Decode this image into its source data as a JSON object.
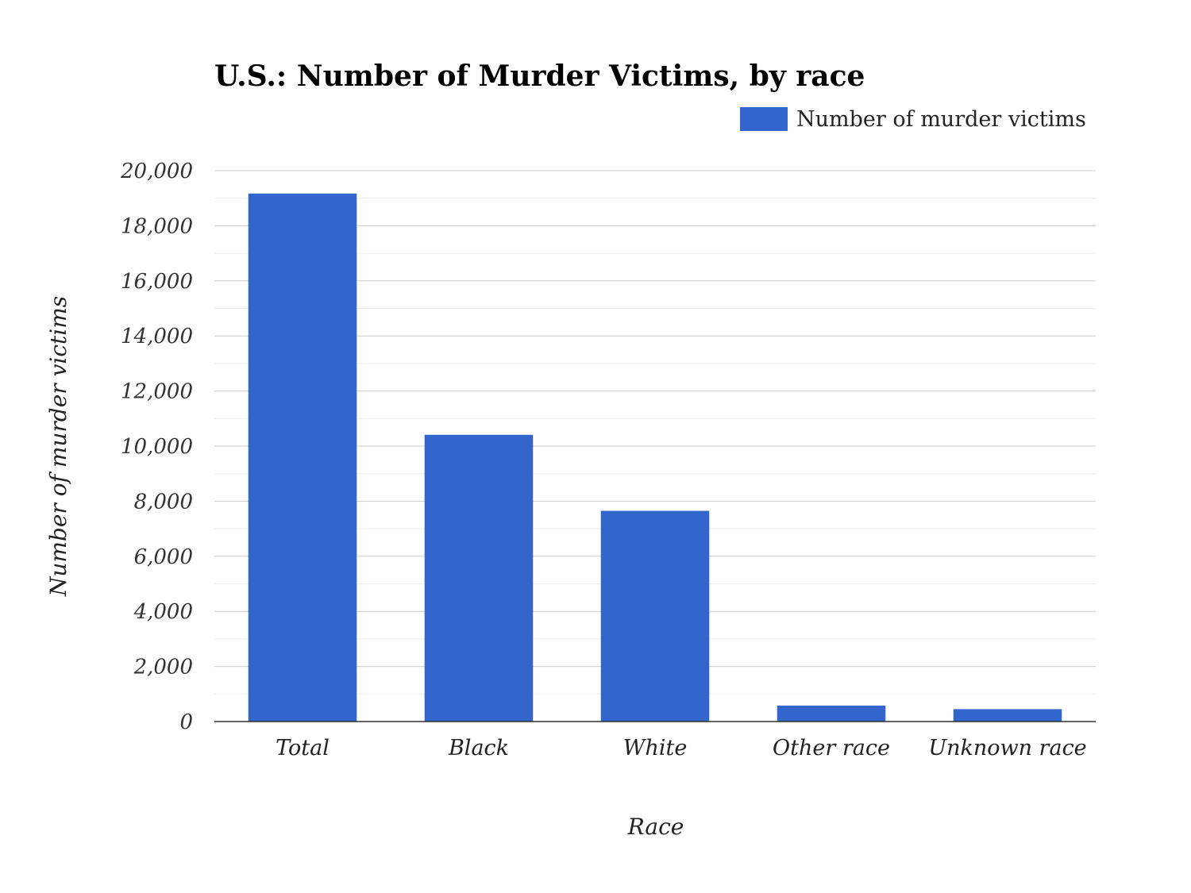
{
  "chart_data": {
    "type": "bar",
    "title": "U.S.: Number of Murder Victims, by race",
    "xlabel": "Race",
    "ylabel": "Number of murder victims",
    "categories": [
      "Total",
      "Black",
      "White",
      "Other race",
      "Unknown race"
    ],
    "series": [
      {
        "name": "Number of murder victims",
        "values": [
          19170,
          10410,
          7650,
          580,
          450
        ],
        "color": "#3366cc"
      }
    ],
    "ylim": [
      0,
      20000
    ],
    "yticks": [
      0,
      2000,
      4000,
      6000,
      8000,
      10000,
      12000,
      14000,
      16000,
      18000,
      20000
    ],
    "ytick_labels": [
      "0",
      "2,000",
      "4,000",
      "6,000",
      "8,000",
      "10,000",
      "12,000",
      "14,000",
      "16,000",
      "18,000",
      "20,000"
    ],
    "grid": true,
    "minor_grid": true,
    "legend_position": "top-right"
  }
}
